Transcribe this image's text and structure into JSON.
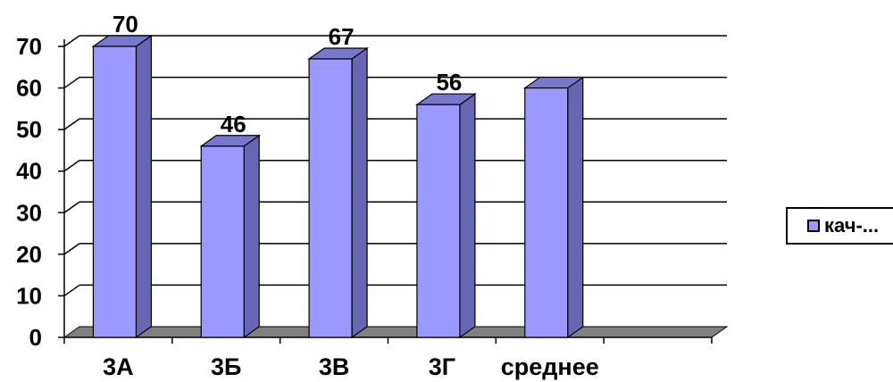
{
  "chart_data": {
    "type": "bar",
    "title": "",
    "xlabel": "",
    "ylabel": "",
    "categories": [
      "3А",
      "3Б",
      "3В",
      "3Г",
      "среднее"
    ],
    "series": [
      {
        "name": "кач-...",
        "values": [
          70,
          46,
          67,
          56,
          60
        ]
      }
    ],
    "data_labels": [
      "70",
      "46",
      "67",
      "56",
      ""
    ],
    "ylim": [
      0,
      70
    ],
    "yticks": [
      0,
      10,
      20,
      30,
      40,
      50,
      60,
      70
    ],
    "grid": true,
    "legend": "right",
    "bar_style": "3d",
    "colors": {
      "bar_front": "#9999ff",
      "bar_side": "#6666b3",
      "bar_top": "#7777cc",
      "floor": "#808080"
    }
  }
}
